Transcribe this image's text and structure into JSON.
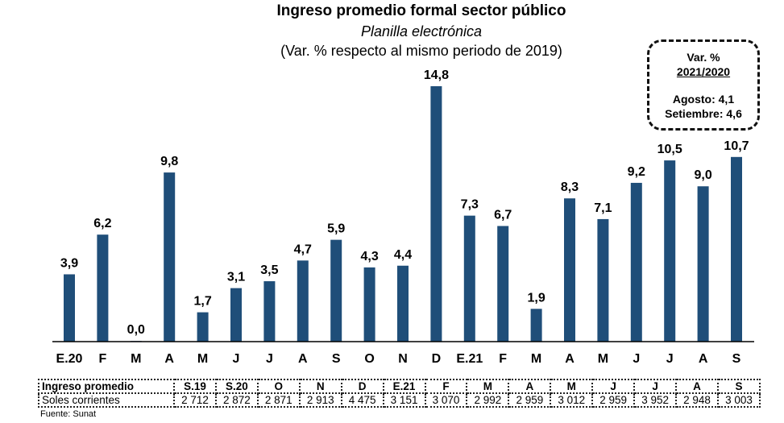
{
  "header": {
    "title": "Ingreso promedio formal sector público",
    "subtitle": "Planilla electrónica",
    "subtitle2": "(Var. % respecto al mismo periodo de 2019)"
  },
  "note_box": {
    "line1": "Var. %",
    "line2": "2021/2020",
    "line3": "Agosto: 4,1",
    "line4": "Setiembre: 4,6"
  },
  "chart_data": {
    "type": "bar",
    "title": "Ingreso promedio formal sector público",
    "subtitle": "Planilla electrónica (Var. % respecto al mismo periodo de 2019)",
    "xlabel": "",
    "ylabel": "",
    "categories": [
      "E.20",
      "F",
      "M",
      "A",
      "M",
      "J",
      "J",
      "A",
      "S",
      "O",
      "N",
      "D",
      "E.21",
      "F",
      "M",
      "A",
      "M",
      "J",
      "J",
      "A",
      "S"
    ],
    "values": [
      3.9,
      6.2,
      0.0,
      9.8,
      1.7,
      3.1,
      3.5,
      4.7,
      5.9,
      4.3,
      4.4,
      14.8,
      7.3,
      6.7,
      1.9,
      8.3,
      7.1,
      9.2,
      10.5,
      9.0,
      10.7
    ],
    "value_labels": [
      "3,9",
      "6,2",
      "0,0",
      "9,8",
      "1,7",
      "3,1",
      "3,5",
      "4,7",
      "5,9",
      "4,3",
      "4,4",
      "14,8",
      "7,3",
      "6,7",
      "1,9",
      "8,3",
      "7,1",
      "9,2",
      "10,5",
      "9,0",
      "10,7"
    ],
    "ylim": [
      0,
      14.8
    ],
    "grid": false,
    "legend": "none",
    "bar_color": "#1f4e79",
    "annotation": "Var. % 2021/2020 — Agosto: 4,1; Setiembre: 4,6"
  },
  "table": {
    "row_headers": [
      "Ingreso promedio",
      "Soles corrientes"
    ],
    "columns": [
      "S.19",
      "S.20",
      "O",
      "N",
      "D",
      "E.21",
      "F",
      "M",
      "A",
      "M",
      "J",
      "J",
      "A",
      "S"
    ],
    "values": [
      "2 712",
      "2 872",
      "2 871",
      "2 913",
      "4 475",
      "3 151",
      "3 070",
      "2 992",
      "2 959",
      "3 012",
      "2 959",
      "3 952",
      "2 948",
      "3 003"
    ]
  },
  "source": "Fuente: Sunat"
}
